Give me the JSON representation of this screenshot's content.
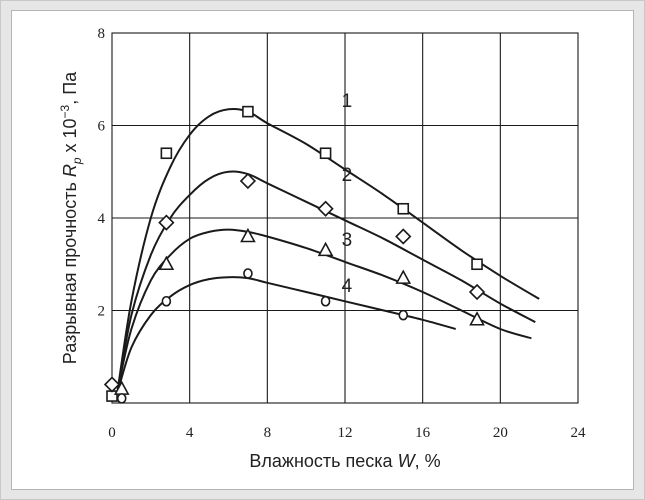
{
  "chart_data": {
    "type": "line",
    "xlabel_main": "Влажность песка ",
    "xlabel_var": "W",
    "xlabel_unit": ", %",
    "ylabel_main": "Разрывная прочность ",
    "ylabel_var": "R",
    "ylabel_sub": "p",
    "ylabel_mid": " x 10",
    "ylabel_sup": "−3",
    "ylabel_unit": ", Па",
    "xlim": [
      0,
      24
    ],
    "ylim": [
      0,
      8
    ],
    "x_ticks": [
      0,
      4,
      8,
      12,
      16,
      20,
      24
    ],
    "y_ticks": [
      2,
      4,
      6,
      8
    ],
    "x_tick_labels": [
      "0",
      "4",
      "8",
      "12",
      "16",
      "20",
      "24"
    ],
    "y_tick_labels": [
      "2",
      "4",
      "6",
      "8"
    ],
    "grid": true,
    "series": [
      {
        "name": "1",
        "marker": "square",
        "points": [
          [
            0,
            0.15
          ],
          [
            2.8,
            5.4
          ],
          [
            7,
            6.3
          ],
          [
            11,
            5.4
          ],
          [
            15,
            4.2
          ],
          [
            18.8,
            3.0
          ]
        ],
        "curve": [
          [
            0.3,
            0.3
          ],
          [
            1,
            2.2
          ],
          [
            2,
            4.0
          ],
          [
            3,
            5.1
          ],
          [
            4,
            5.8
          ],
          [
            5,
            6.2
          ],
          [
            6,
            6.35
          ],
          [
            7,
            6.3
          ],
          [
            8,
            6.05
          ],
          [
            10,
            5.6
          ],
          [
            12,
            5.05
          ],
          [
            14,
            4.5
          ],
          [
            16,
            3.9
          ],
          [
            18,
            3.3
          ],
          [
            20,
            2.75
          ],
          [
            22,
            2.25
          ]
        ],
        "label_at": [
          12.1,
          6.55
        ]
      },
      {
        "name": "2",
        "marker": "diamond",
        "points": [
          [
            0,
            0.4
          ],
          [
            2.8,
            3.9
          ],
          [
            7,
            4.8
          ],
          [
            11,
            4.2
          ],
          [
            15,
            3.6
          ],
          [
            18.8,
            2.4
          ]
        ],
        "curve": [
          [
            0.3,
            0.3
          ],
          [
            1,
            1.9
          ],
          [
            2,
            3.2
          ],
          [
            3,
            4.0
          ],
          [
            4,
            4.5
          ],
          [
            5,
            4.85
          ],
          [
            6,
            5.0
          ],
          [
            7,
            4.95
          ],
          [
            8,
            4.75
          ],
          [
            10,
            4.35
          ],
          [
            12,
            3.95
          ],
          [
            14,
            3.55
          ],
          [
            16,
            3.1
          ],
          [
            18,
            2.65
          ],
          [
            20,
            2.15
          ],
          [
            21.8,
            1.75
          ]
        ],
        "label_at": [
          12.1,
          4.95
        ]
      },
      {
        "name": "3",
        "marker": "triangle",
        "points": [
          [
            0.5,
            0.3
          ],
          [
            2.8,
            3.0
          ],
          [
            7,
            3.6
          ],
          [
            11,
            3.3
          ],
          [
            15,
            2.7
          ],
          [
            18.8,
            1.8
          ]
        ],
        "curve": [
          [
            0.3,
            0.3
          ],
          [
            1,
            1.6
          ],
          [
            2,
            2.65
          ],
          [
            3,
            3.2
          ],
          [
            4,
            3.55
          ],
          [
            5,
            3.7
          ],
          [
            6,
            3.75
          ],
          [
            7,
            3.7
          ],
          [
            8,
            3.6
          ],
          [
            10,
            3.35
          ],
          [
            12,
            3.05
          ],
          [
            14,
            2.75
          ],
          [
            16,
            2.4
          ],
          [
            18,
            2.0
          ],
          [
            20,
            1.6
          ],
          [
            21.6,
            1.4
          ]
        ],
        "label_at": [
          12.1,
          3.55
        ]
      },
      {
        "name": "4",
        "marker": "circle",
        "points": [
          [
            0.5,
            0.1
          ],
          [
            2.8,
            2.2
          ],
          [
            7,
            2.8
          ],
          [
            11,
            2.2
          ],
          [
            15,
            1.9
          ]
        ],
        "curve": [
          [
            0.3,
            0.25
          ],
          [
            1,
            1.2
          ],
          [
            2,
            1.9
          ],
          [
            3,
            2.3
          ],
          [
            4,
            2.55
          ],
          [
            5,
            2.68
          ],
          [
            6,
            2.72
          ],
          [
            7,
            2.7
          ],
          [
            8,
            2.6
          ],
          [
            10,
            2.4
          ],
          [
            12,
            2.2
          ],
          [
            14,
            2.0
          ],
          [
            16,
            1.8
          ],
          [
            17.7,
            1.6
          ]
        ],
        "label_at": [
          12.1,
          2.55
        ]
      }
    ]
  }
}
